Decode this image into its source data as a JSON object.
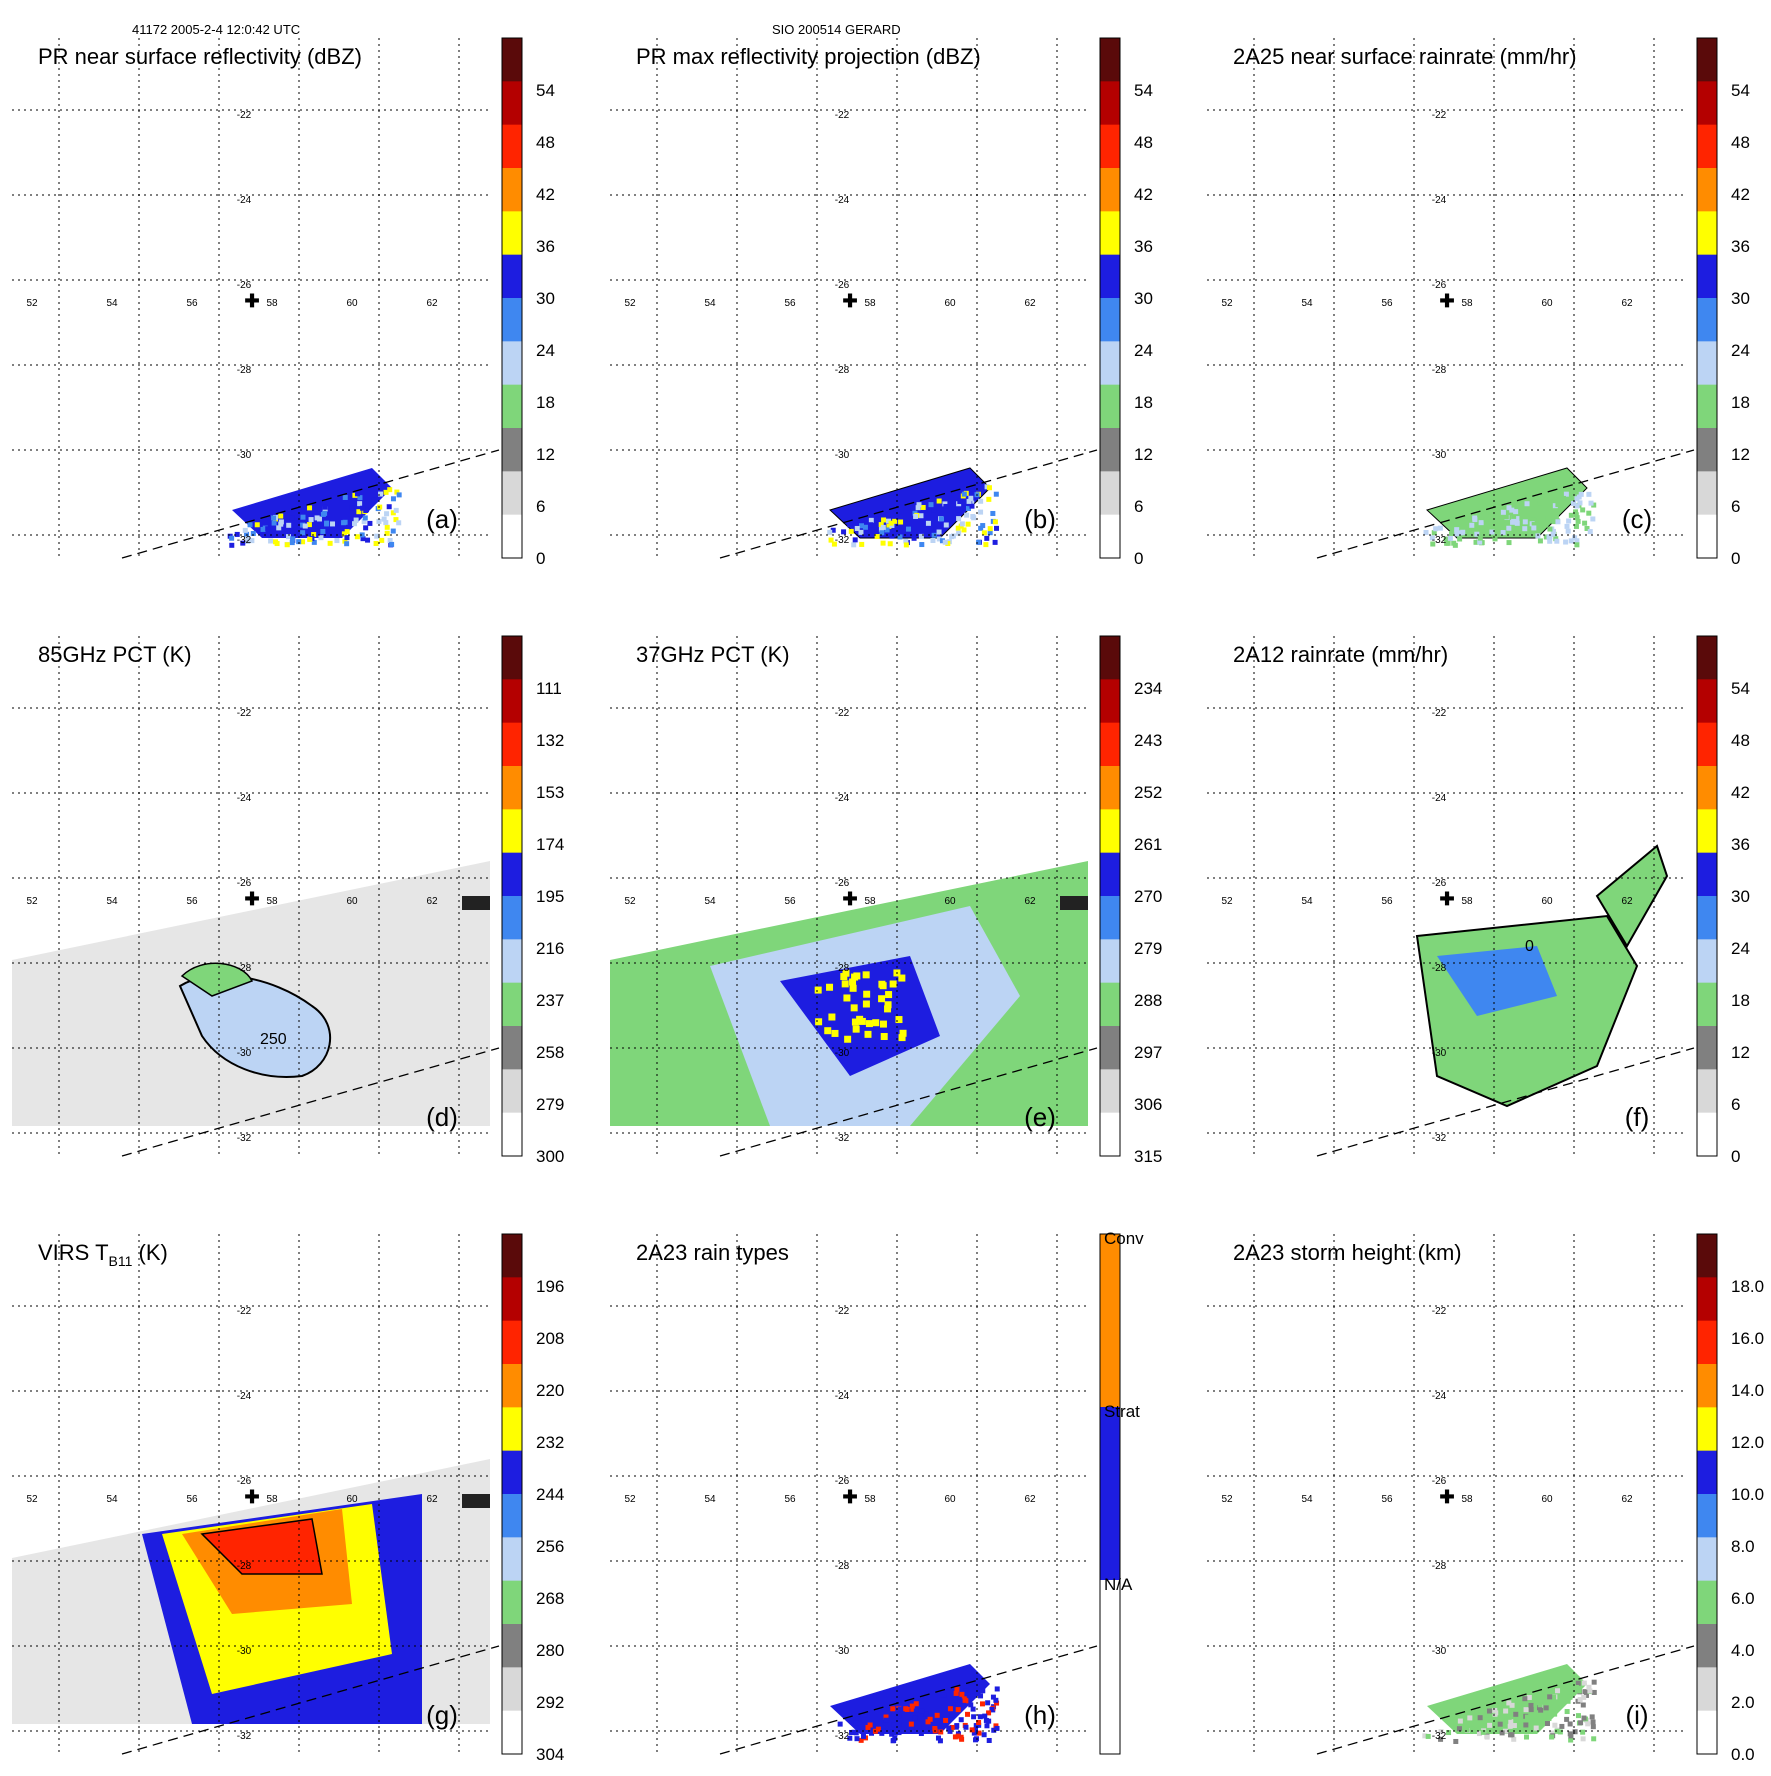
{
  "header": {
    "left": "41172 2005-2-4 12:0:42 UTC",
    "center": "SIO 200514 GERARD"
  },
  "lon_ticks": [
    "52",
    "54",
    "56",
    "58",
    "60",
    "62"
  ],
  "lat_ticks": [
    "-22",
    "-24",
    "-26",
    "-28",
    "-30",
    "-32"
  ],
  "colors": {
    "gray_dark": "#808080",
    "gray_light": "#d8d8d8",
    "green": "#7fd67a",
    "blue_light": "#bcd4f4",
    "blue_mid": "#3f87f0",
    "blue_dark": "#1d1de0",
    "yellow": "#ffff00",
    "orange": "#ff8c00",
    "red": "#ff2400",
    "dark_red": "#b40000",
    "brown": "#5a0a0a"
  },
  "chart_data": [
    {
      "id": "a",
      "type": "heatmap",
      "title": "PR near surface reflectivity (dBZ)",
      "label": "(a)",
      "colorbar": {
        "ticks": [
          "54",
          "48",
          "42",
          "36",
          "30",
          "24",
          "18",
          "12",
          "6",
          "0"
        ]
      },
      "field": "narrow_swath_reflectivity"
    },
    {
      "id": "b",
      "type": "heatmap",
      "title": "PR max reflectivity projection (dBZ)",
      "label": "(b)",
      "colorbar": {
        "ticks": [
          "54",
          "48",
          "42",
          "36",
          "30",
          "24",
          "18",
          "12",
          "6",
          "0"
        ]
      },
      "field": "narrow_swath_reflectivity_contoured"
    },
    {
      "id": "c",
      "type": "heatmap",
      "title": "2A25 near surface rainrate (mm/hr)",
      "label": "(c)",
      "colorbar": {
        "ticks": [
          "54",
          "48",
          "42",
          "36",
          "30",
          "24",
          "18",
          "12",
          "6",
          "0"
        ]
      },
      "field": "narrow_swath_rainrate"
    },
    {
      "id": "d",
      "type": "heatmap",
      "title": "85GHz PCT (K)",
      "label": "(d)",
      "colorbar": {
        "ticks": [
          "111",
          "132",
          "153",
          "174",
          "195",
          "216",
          "237",
          "258",
          "279",
          "300"
        ]
      },
      "contour_label": "250",
      "field": "wide_swath_pct85"
    },
    {
      "id": "e",
      "type": "heatmap",
      "title": "37GHz PCT (K)",
      "label": "(e)",
      "colorbar": {
        "ticks": [
          "234",
          "243",
          "252",
          "261",
          "270",
          "279",
          "288",
          "297",
          "306",
          "315"
        ]
      },
      "field": "wide_swath_pct37"
    },
    {
      "id": "f",
      "type": "heatmap",
      "title": "2A12 rainrate (mm/hr)",
      "label": "(f)",
      "colorbar": {
        "ticks": [
          "54",
          "48",
          "42",
          "36",
          "30",
          "24",
          "18",
          "12",
          "6",
          "0"
        ]
      },
      "contour_label": "0",
      "field": "wide_swath_rainrate"
    },
    {
      "id": "g",
      "type": "heatmap",
      "title": "VIRS T",
      "title_sub": "B11",
      "title_suffix": " (K)",
      "label": "(g)",
      "colorbar": {
        "ticks": [
          "196",
          "208",
          "220",
          "232",
          "244",
          "256",
          "268",
          "280",
          "292",
          "304"
        ]
      },
      "field": "wide_swath_ir"
    },
    {
      "id": "h",
      "type": "heatmap",
      "title": "2A23 rain types",
      "label": "(h)",
      "colorbar": {
        "categories": [
          "Conv",
          "Strat",
          "N/A"
        ]
      },
      "field": "narrow_swath_raintype"
    },
    {
      "id": "i",
      "type": "heatmap",
      "title": "2A23 storm height (km)",
      "label": "(i)",
      "colorbar": {
        "ticks": [
          "18.0",
          "16.0",
          "14.0",
          "12.0",
          "10.0",
          "8.0",
          "6.0",
          "4.0",
          "2.0",
          "0.0"
        ]
      },
      "field": "narrow_swath_height"
    }
  ]
}
